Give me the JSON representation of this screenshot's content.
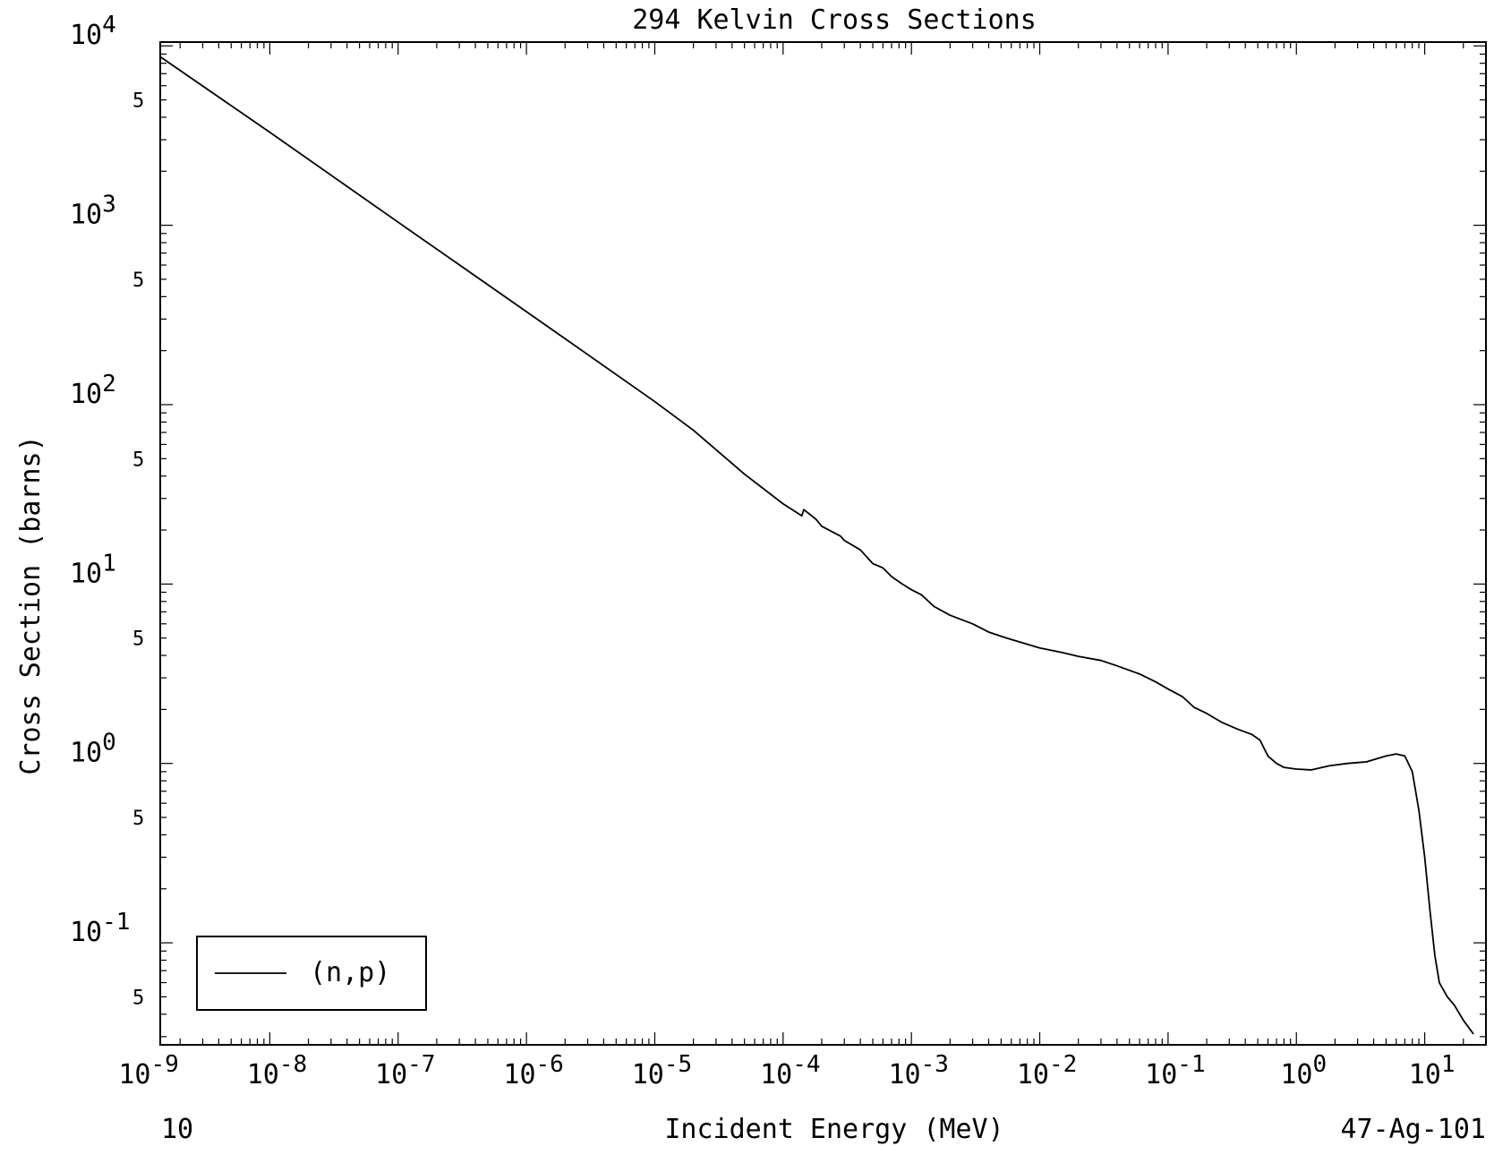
{
  "chart_data": {
    "type": "line",
    "title": "294 Kelvin Cross Sections",
    "xlabel": "Incident Energy (MeV)",
    "ylabel": "Cross Section (barns)",
    "x_scale": "log",
    "y_scale": "log",
    "xlim": [
      1.4e-09,
      30
    ],
    "ylim": [
      0.027,
      10500
    ],
    "grid": false,
    "legend_position": "bottom-left",
    "x_ticks": [
      {
        "value": 1e-09,
        "base": "10",
        "exp": "-9"
      },
      {
        "value": 1e-08,
        "base": "10",
        "exp": "-8"
      },
      {
        "value": 1e-07,
        "base": "10",
        "exp": "-7"
      },
      {
        "value": 1e-06,
        "base": "10",
        "exp": "-6"
      },
      {
        "value": 1e-05,
        "base": "10",
        "exp": "-5"
      },
      {
        "value": 0.0001,
        "base": "10",
        "exp": "-4"
      },
      {
        "value": 0.001,
        "base": "10",
        "exp": "-3"
      },
      {
        "value": 0.01,
        "base": "10",
        "exp": "-2"
      },
      {
        "value": 0.1,
        "base": "10",
        "exp": "-1"
      },
      {
        "value": 1,
        "base": "10",
        "exp": "0"
      },
      {
        "value": 10,
        "base": "10",
        "exp": "1"
      }
    ],
    "y_ticks": [
      {
        "value": 10000,
        "base": "10",
        "exp": "4"
      },
      {
        "value": 1000,
        "base": "10",
        "exp": "3"
      },
      {
        "value": 100,
        "base": "10",
        "exp": "2"
      },
      {
        "value": 10,
        "base": "10",
        "exp": "1"
      },
      {
        "value": 1,
        "base": "10",
        "exp": "0"
      },
      {
        "value": 0.1,
        "base": "10",
        "exp": "-1"
      }
    ],
    "y_minor_labels": [
      {
        "value": 5000,
        "label": "5"
      },
      {
        "value": 500,
        "label": "5"
      },
      {
        "value": 50,
        "label": "5"
      },
      {
        "value": 5,
        "label": "5"
      },
      {
        "value": 0.5,
        "label": "5"
      },
      {
        "value": 0.05,
        "label": "5"
      }
    ],
    "series": [
      {
        "name": "(n,p)",
        "color": "#000000",
        "points": [
          [
            1.4e-09,
            8700
          ],
          [
            1e-08,
            3300
          ],
          [
            1e-07,
            1040
          ],
          [
            1e-06,
            330
          ],
          [
            1e-05,
            104
          ],
          [
            2e-05,
            72
          ],
          [
            5e-05,
            41
          ],
          [
            0.0001,
            28
          ],
          [
            0.00014,
            24
          ],
          [
            0.000145,
            26
          ],
          [
            0.00018,
            23
          ],
          [
            0.0002,
            21
          ],
          [
            0.00028,
            18.5
          ],
          [
            0.0003,
            17.5
          ],
          [
            0.0004,
            15.5
          ],
          [
            0.0005,
            13
          ],
          [
            0.0006,
            12.3
          ],
          [
            0.0007,
            11
          ],
          [
            0.00085,
            10
          ],
          [
            0.001,
            9.3
          ],
          [
            0.0012,
            8.7
          ],
          [
            0.0015,
            7.5
          ],
          [
            0.002,
            6.7
          ],
          [
            0.003,
            6.0
          ],
          [
            0.004,
            5.4
          ],
          [
            0.0055,
            5.0
          ],
          [
            0.007,
            4.75
          ],
          [
            0.01,
            4.4
          ],
          [
            0.015,
            4.15
          ],
          [
            0.02,
            3.95
          ],
          [
            0.03,
            3.75
          ],
          [
            0.04,
            3.5
          ],
          [
            0.06,
            3.15
          ],
          [
            0.08,
            2.85
          ],
          [
            0.1,
            2.6
          ],
          [
            0.13,
            2.35
          ],
          [
            0.16,
            2.05
          ],
          [
            0.2,
            1.9
          ],
          [
            0.26,
            1.7
          ],
          [
            0.35,
            1.55
          ],
          [
            0.45,
            1.45
          ],
          [
            0.52,
            1.35
          ],
          [
            0.6,
            1.1
          ],
          [
            0.7,
            1.0
          ],
          [
            0.8,
            0.95
          ],
          [
            1.0,
            0.93
          ],
          [
            1.3,
            0.92
          ],
          [
            1.8,
            0.97
          ],
          [
            2.5,
            1.0
          ],
          [
            3.5,
            1.02
          ],
          [
            5.0,
            1.1
          ],
          [
            6.0,
            1.13
          ],
          [
            7.0,
            1.1
          ],
          [
            8.0,
            0.9
          ],
          [
            9.0,
            0.55
          ],
          [
            10.0,
            0.3
          ],
          [
            11.0,
            0.15
          ],
          [
            12.0,
            0.085
          ],
          [
            13.0,
            0.06
          ],
          [
            15.0,
            0.05
          ],
          [
            17.0,
            0.045
          ],
          [
            20.0,
            0.037
          ],
          [
            24.0,
            0.031
          ]
        ]
      }
    ],
    "annotations": {
      "bottom_left": "10",
      "bottom_right": "47-Ag-101"
    }
  }
}
